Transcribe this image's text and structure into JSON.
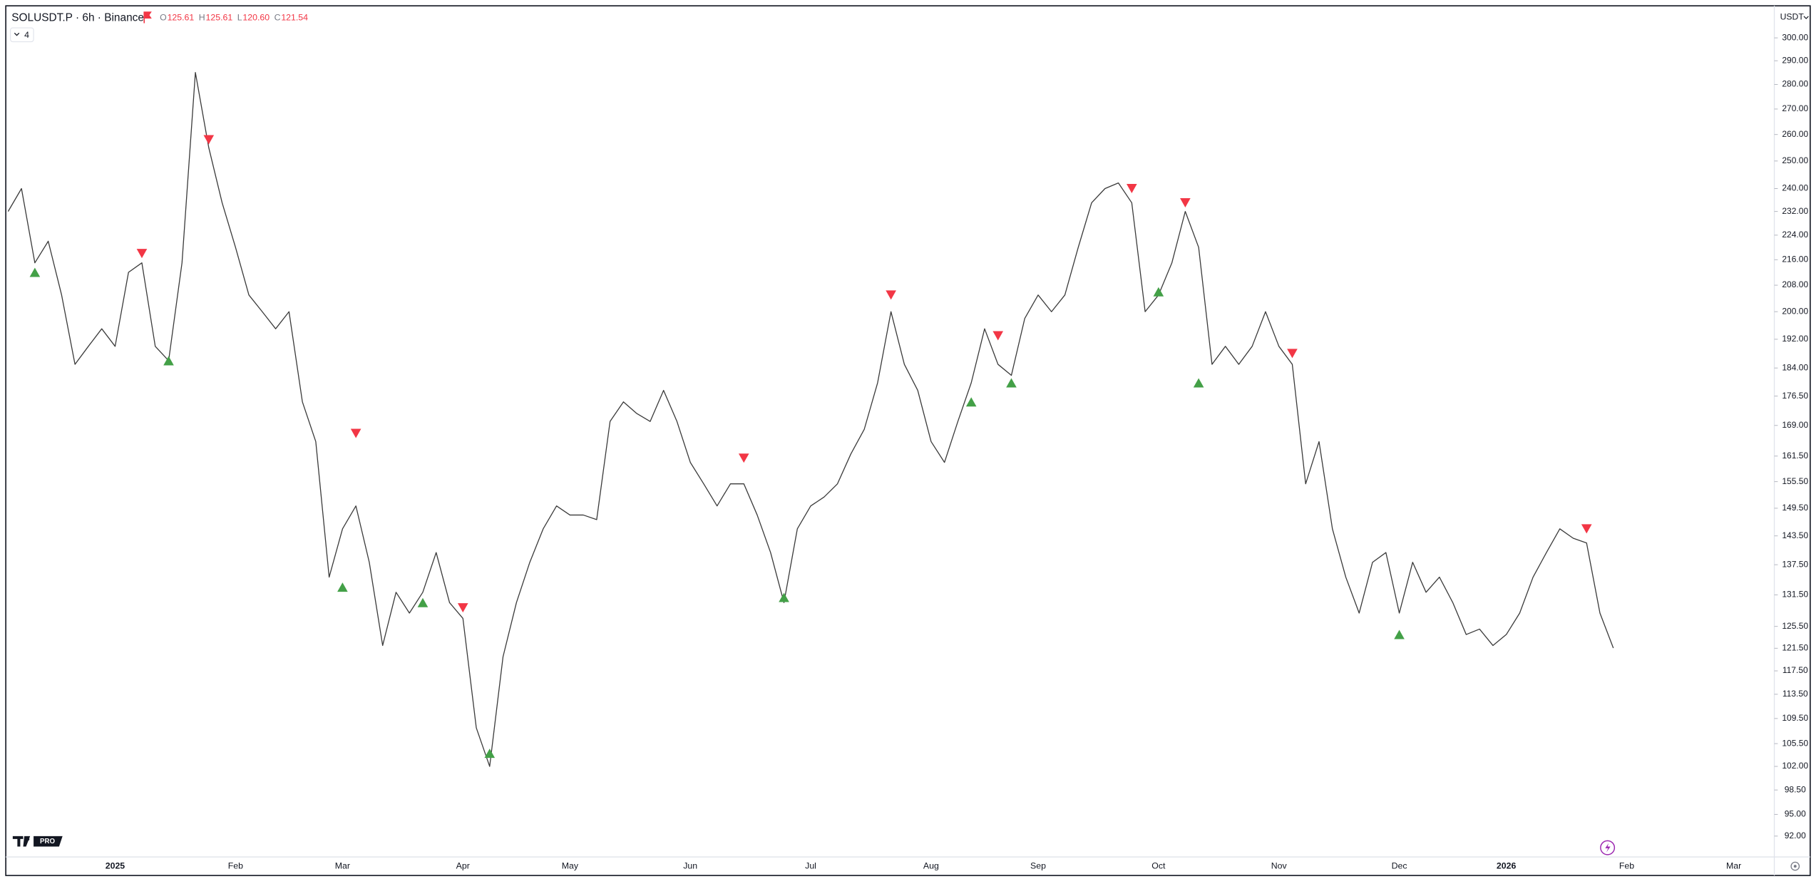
{
  "chart_data": {
    "type": "line",
    "title": "SOLUSDT.P · 6h · Binance",
    "ohlc": [
      {
        "key": "O",
        "value": 125.61
      },
      {
        "key": "H",
        "value": 125.61
      },
      {
        "key": "L",
        "value": {
          "value": 120.6,
          "label": "120.60"
        }
      },
      {
        "key": "C",
        "value": 121.54
      }
    ],
    "indicator_count": 4,
    "currency": "USDT",
    "logo_text": "PRO",
    "log_scale": true,
    "grid": false,
    "ylim": [
      89.2,
      313.5
    ],
    "yticks": [
      {
        "value": 300,
        "label": "300.00"
      },
      {
        "value": 290,
        "label": "290.00"
      },
      {
        "value": 280,
        "label": "280.00"
      },
      {
        "value": 270,
        "label": "270.00"
      },
      {
        "value": 260,
        "label": "260.00"
      },
      {
        "value": 250,
        "label": "250.00"
      },
      {
        "value": 240,
        "label": "240.00"
      },
      {
        "value": 232,
        "label": "232.00"
      },
      {
        "value": 224,
        "label": "224.00"
      },
      {
        "value": 216,
        "label": "216.00"
      },
      {
        "value": 208,
        "label": "208.00"
      },
      {
        "value": 200,
        "label": "200.00"
      },
      {
        "value": 192,
        "label": "192.00"
      },
      {
        "value": 184,
        "label": "184.00"
      },
      {
        "value": 176.5,
        "label": "176.50"
      },
      {
        "value": 169,
        "label": "169.00"
      },
      {
        "value": 161.5,
        "label": "161.50"
      },
      {
        "value": 155.5,
        "label": "155.50"
      },
      {
        "value": 149.5,
        "label": "149.50"
      },
      {
        "value": 143.5,
        "label": "143.50"
      },
      {
        "value": 137.5,
        "label": "137.50"
      },
      {
        "value": 131.5,
        "label": "131.50"
      },
      {
        "value": 125.5,
        "label": "125.50"
      },
      {
        "value": 121.5,
        "label": "121.50"
      },
      {
        "value": 117.5,
        "label": "117.50"
      },
      {
        "value": 113.5,
        "label": "113.50"
      },
      {
        "value": 109.5,
        "label": "109.50"
      },
      {
        "value": 105.5,
        "label": "105.50"
      },
      {
        "value": 102,
        "label": "102.00"
      },
      {
        "value": 98.5,
        "label": "98.50"
      },
      {
        "value": 95,
        "label": "95.00"
      },
      {
        "value": 92,
        "label": "92.00"
      }
    ],
    "categories": [
      null,
      null,
      null,
      null,
      null,
      null,
      null,
      null,
      "2025",
      null,
      null,
      null,
      null,
      null,
      null,
      null,
      null,
      "Feb",
      null,
      null,
      null,
      null,
      null,
      null,
      null,
      "Mar",
      null,
      null,
      null,
      null,
      null,
      null,
      null,
      null,
      "Apr",
      null,
      null,
      null,
      null,
      null,
      null,
      null,
      "May",
      null,
      null,
      null,
      null,
      null,
      null,
      null,
      null,
      "Jun",
      null,
      null,
      null,
      null,
      null,
      null,
      null,
      null,
      "Jul",
      null,
      null,
      null,
      null,
      null,
      null,
      null,
      null,
      "Aug",
      null,
      null,
      null,
      null,
      null,
      null,
      null,
      "Sep",
      null,
      null,
      null,
      null,
      null,
      null,
      null,
      null,
      "Oct",
      null,
      null,
      null,
      null,
      null,
      null,
      null,
      null,
      "Nov",
      null,
      null,
      null,
      null,
      null,
      null,
      null,
      null,
      "Dec",
      null,
      null,
      null,
      null,
      null,
      null,
      null,
      "2026",
      null,
      null,
      null,
      null,
      null,
      null,
      null,
      null,
      "Feb",
      null,
      null,
      null,
      null,
      null,
      null,
      null,
      "Mar",
      null,
      null
    ],
    "series": [
      {
        "color": "#3a3a3a",
        "values": [
          232,
          240,
          215,
          222,
          205,
          185,
          190,
          195,
          190,
          212,
          215,
          190,
          186,
          215,
          285,
          255,
          235,
          220,
          205,
          200,
          195,
          200,
          175,
          165,
          135,
          145,
          150,
          138,
          122,
          132,
          128,
          132,
          140,
          130,
          127,
          108,
          102,
          120,
          130,
          138,
          145,
          150,
          148,
          148,
          147,
          170,
          175,
          172,
          170,
          178,
          170,
          160,
          155,
          150,
          155,
          155,
          148,
          140,
          130,
          145,
          150,
          152,
          155,
          162,
          168,
          180,
          200,
          185,
          178,
          165,
          160,
          170,
          180,
          195,
          185,
          182,
          198,
          205,
          200,
          205,
          220,
          235,
          240,
          242,
          235,
          200,
          205,
          215,
          232,
          220,
          185,
          190,
          185,
          190,
          200,
          190,
          185,
          155,
          165,
          145,
          135,
          128,
          138,
          140,
          128,
          138,
          132,
          135,
          130,
          124,
          125,
          122,
          124,
          128,
          135,
          140,
          145,
          143,
          142,
          128,
          121.54,
          null,
          null,
          null,
          null,
          null,
          null,
          null,
          null,
          null,
          null,
          null
        ]
      },
      {
        "color": "#43a047",
        "marker": "triangle-up",
        "values": [
          null,
          null,
          212,
          null,
          null,
          null,
          null,
          null,
          null,
          null,
          null,
          null,
          186,
          null,
          null,
          null,
          null,
          null,
          null,
          null,
          null,
          null,
          null,
          null,
          null,
          133,
          null,
          null,
          null,
          null,
          null,
          130,
          null,
          null,
          null,
          null,
          104,
          null,
          null,
          null,
          null,
          null,
          null,
          null,
          null,
          null,
          null,
          null,
          null,
          null,
          null,
          null,
          null,
          null,
          null,
          null,
          null,
          null,
          131,
          null,
          null,
          null,
          null,
          null,
          null,
          null,
          null,
          null,
          null,
          null,
          null,
          null,
          175,
          null,
          null,
          180,
          null,
          null,
          null,
          null,
          null,
          null,
          null,
          null,
          null,
          null,
          206,
          null,
          null,
          180,
          null,
          null,
          null,
          null,
          null,
          null,
          null,
          null,
          null,
          null,
          null,
          null,
          null,
          null,
          124,
          null,
          null,
          null,
          null,
          null,
          null,
          null,
          null,
          null,
          null,
          null,
          null,
          null,
          null,
          null,
          null,
          null,
          null,
          null,
          null,
          null,
          null,
          null,
          null,
          null,
          null,
          null
        ]
      },
      {
        "color": "#f23645",
        "marker": "triangle-down",
        "values": [
          null,
          null,
          null,
          null,
          null,
          null,
          null,
          null,
          null,
          null,
          218,
          null,
          null,
          null,
          null,
          258,
          null,
          null,
          null,
          null,
          null,
          null,
          null,
          null,
          null,
          null,
          167,
          null,
          null,
          null,
          null,
          null,
          null,
          null,
          129,
          null,
          null,
          null,
          null,
          null,
          null,
          null,
          null,
          null,
          null,
          null,
          null,
          null,
          null,
          null,
          null,
          null,
          null,
          null,
          null,
          161,
          null,
          null,
          null,
          null,
          null,
          null,
          null,
          null,
          null,
          null,
          205,
          null,
          null,
          null,
          null,
          null,
          null,
          null,
          193,
          null,
          null,
          null,
          null,
          null,
          null,
          null,
          null,
          null,
          240,
          null,
          null,
          null,
          235,
          null,
          null,
          null,
          null,
          null,
          null,
          null,
          188,
          null,
          null,
          null,
          null,
          null,
          null,
          null,
          null,
          null,
          null,
          null,
          null,
          null,
          null,
          null,
          null,
          null,
          null,
          null,
          null,
          null,
          145,
          null,
          null,
          null,
          null,
          null,
          null,
          null,
          null,
          null,
          null,
          null,
          null,
          null
        ]
      }
    ]
  }
}
